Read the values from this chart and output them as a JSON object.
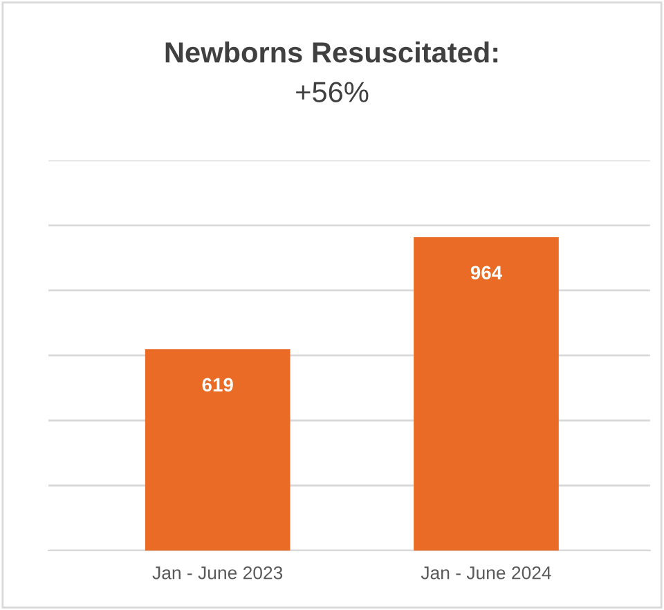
{
  "chart_data": {
    "type": "bar",
    "title": "Newborns Resuscitated:",
    "subtitle": "+56%",
    "categories": [
      "Jan - June 2023",
      "Jan - June 2024"
    ],
    "values": [
      619,
      964
    ],
    "color": "#ea6b26",
    "data_labels": true,
    "ylim": [
      0,
      1200
    ],
    "yticks": [
      {
        "value": 0,
        "label": null
      },
      {
        "value": 200,
        "label": null
      },
      {
        "value": 400,
        "label": null
      },
      {
        "value": 600,
        "label": null
      },
      {
        "value": 800,
        "label": null
      },
      {
        "value": 1000,
        "label": null
      },
      {
        "value": 1200,
        "label": null
      }
    ],
    "tick_labels": "x",
    "grid": "y",
    "legend": false
  }
}
